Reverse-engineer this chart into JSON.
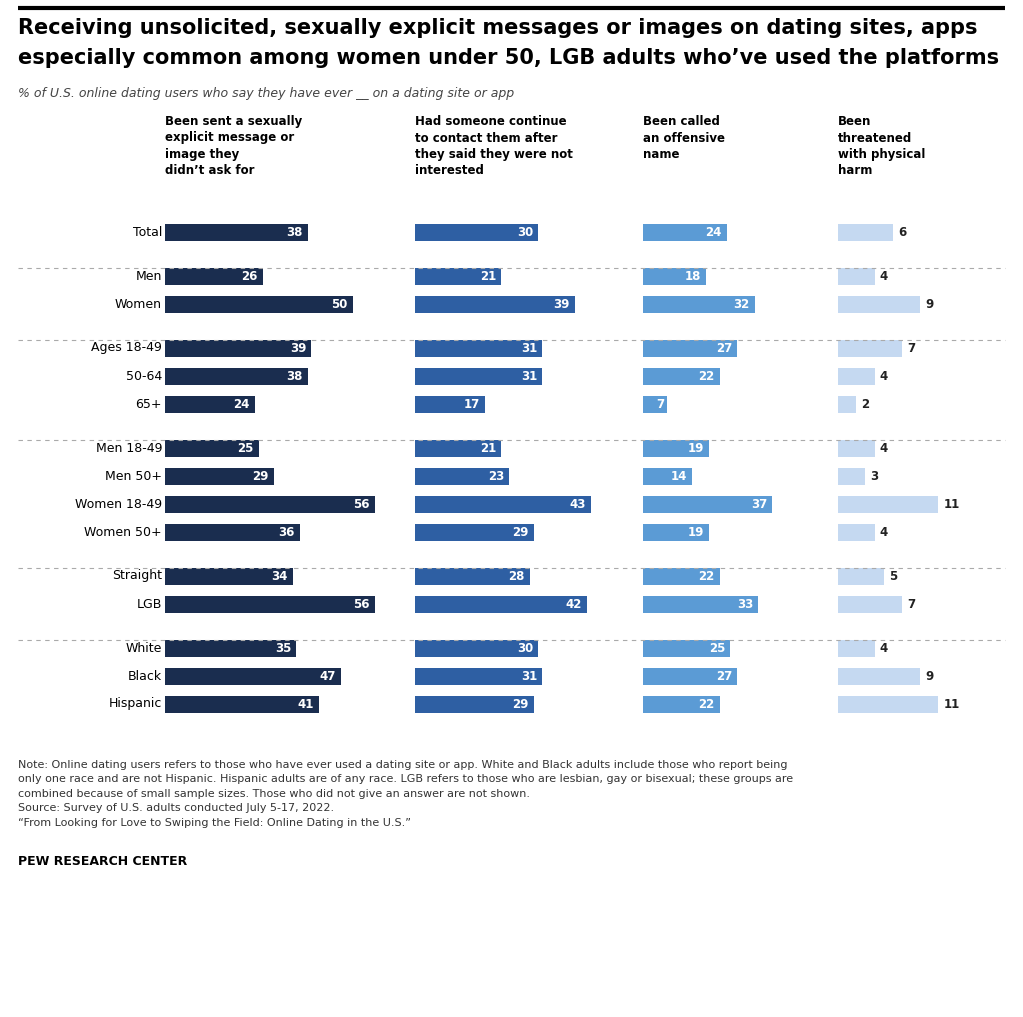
{
  "title_line1": "Receiving unsolicited, sexually explicit messages or images on dating sites, apps",
  "title_line2": "especially common among women under 50, LGB adults who’ve used the platforms",
  "subtitle": "% of U.S. online dating users who say they have ever __ on a dating site or app",
  "col_headers": [
    "Been sent a sexually\nexplicit message or\nimage they\ndidn’t ask for",
    "Had someone continue\nto contact them after\nthey said they were not\ninterested",
    "Been called\nan offensive\nname",
    "Been\nthreatened\nwith physical\nharm"
  ],
  "rows": [
    {
      "label": "Total",
      "vals": [
        38,
        30,
        24,
        6
      ],
      "group": 0
    },
    {
      "label": "Men",
      "vals": [
        26,
        21,
        18,
        4
      ],
      "group": 1
    },
    {
      "label": "Women",
      "vals": [
        50,
        39,
        32,
        9
      ],
      "group": 1
    },
    {
      "label": "Ages 18-49",
      "vals": [
        39,
        31,
        27,
        7
      ],
      "group": 2
    },
    {
      "label": "50-64",
      "vals": [
        38,
        31,
        22,
        4
      ],
      "group": 2
    },
    {
      "label": "65+",
      "vals": [
        24,
        17,
        7,
        2
      ],
      "group": 2
    },
    {
      "label": "Men 18-49",
      "vals": [
        25,
        21,
        19,
        4
      ],
      "group": 3
    },
    {
      "label": "Men 50+",
      "vals": [
        29,
        23,
        14,
        3
      ],
      "group": 3
    },
    {
      "label": "Women 18-49",
      "vals": [
        56,
        43,
        37,
        11
      ],
      "group": 3
    },
    {
      "label": "Women 50+",
      "vals": [
        36,
        29,
        19,
        4
      ],
      "group": 3
    },
    {
      "label": "Straight",
      "vals": [
        34,
        28,
        22,
        5
      ],
      "group": 4
    },
    {
      "label": "LGB",
      "vals": [
        56,
        42,
        33,
        7
      ],
      "group": 4
    },
    {
      "label": "White",
      "vals": [
        35,
        30,
        25,
        4
      ],
      "group": 5
    },
    {
      "label": "Black",
      "vals": [
        47,
        31,
        27,
        9
      ],
      "group": 5
    },
    {
      "label": "Hispanic",
      "vals": [
        41,
        29,
        22,
        11
      ],
      "group": 5
    }
  ],
  "col_colors": [
    "#1a2d4f",
    "#2e5fa3",
    "#5b9bd5",
    "#c5d9f1"
  ],
  "group_sizes": [
    1,
    2,
    3,
    4,
    2,
    3
  ],
  "col_max": [
    60,
    50,
    45,
    15
  ],
  "note": "Note: Online dating users refers to those who have ever used a dating site or app. White and Black adults include those who report being\nonly one race and are not Hispanic. Hispanic adults are of any race. LGB refers to those who are lesbian, gay or bisexual; these groups are\ncombined because of small sample sizes. Those who did not give an answer are not shown.\nSource: Survey of U.S. adults conducted July 5-17, 2022.\n“From Looking for Love to Swiping the Field: Online Dating in the U.S.”",
  "source_bold": "PEW RESEARCH CENTER",
  "background_color": "#ffffff",
  "text_color": "#000000"
}
